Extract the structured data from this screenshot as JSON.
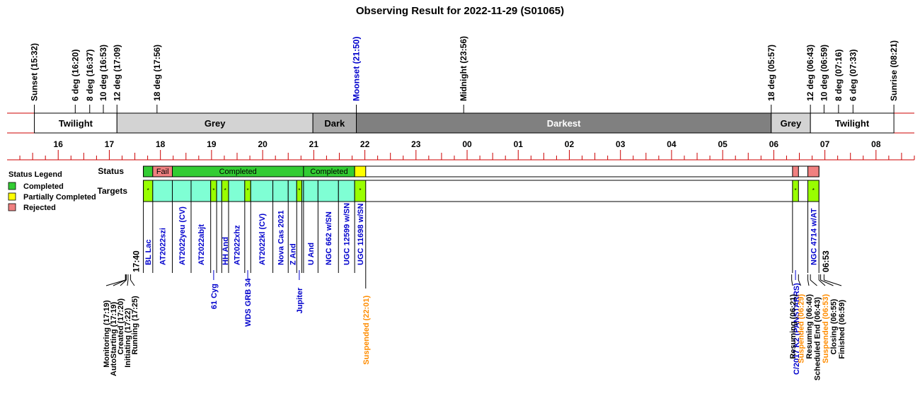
{
  "chart_data": {
    "type": "timeline",
    "title": "Observing Result for 2022-11-29 (S01065)",
    "time_axis": {
      "unit": "hour (UT+)",
      "start_hour": 15.0,
      "end_hour": 32.75,
      "tick_labels": [
        {
          "h": 16,
          "label": "16"
        },
        {
          "h": 17,
          "label": "17"
        },
        {
          "h": 18,
          "label": "18"
        },
        {
          "h": 19,
          "label": "19"
        },
        {
          "h": 20,
          "label": "20"
        },
        {
          "h": 21,
          "label": "21"
        },
        {
          "h": 22,
          "label": "22"
        },
        {
          "h": 23,
          "label": "23"
        },
        {
          "h": 24,
          "label": "00"
        },
        {
          "h": 25,
          "label": "01"
        },
        {
          "h": 26,
          "label": "02"
        },
        {
          "h": 27,
          "label": "03"
        },
        {
          "h": 28,
          "label": "04"
        },
        {
          "h": 29,
          "label": "05"
        },
        {
          "h": 30,
          "label": "06"
        },
        {
          "h": 31,
          "label": "07"
        },
        {
          "h": 32,
          "label": "08"
        }
      ]
    },
    "sun_events": [
      {
        "label": "Sunset (15:32)",
        "time": "15:32",
        "color": "#000000"
      },
      {
        "label": "6 deg (16:20)",
        "time": "16:20",
        "color": "#000000"
      },
      {
        "label": "8 deg (16:37)",
        "time": "16:37",
        "color": "#000000"
      },
      {
        "label": "10 deg (16:53)",
        "time": "16:53",
        "color": "#000000"
      },
      {
        "label": "12 deg (17:09)",
        "time": "17:09",
        "color": "#000000"
      },
      {
        "label": "18 deg (17:56)",
        "time": "17:56",
        "color": "#000000"
      },
      {
        "label": "Moonset (21:50)",
        "time": "21:50",
        "color": "#0000cc"
      },
      {
        "label": "Midnight (23:56)",
        "time": "23:56",
        "color": "#000000"
      },
      {
        "label": "18 deg (05:57)",
        "time": "05:57",
        "color": "#000000"
      },
      {
        "label": "12 deg (06:43)",
        "time": "06:43",
        "color": "#000000"
      },
      {
        "label": "10 deg (06:59)",
        "time": "06:59",
        "color": "#000000"
      },
      {
        "label": "8 deg (07:16)",
        "time": "07:16",
        "color": "#000000"
      },
      {
        "label": "6 deg (07:33)",
        "time": "07:33",
        "color": "#000000"
      },
      {
        "label": "Sunrise (08:21)",
        "time": "08:21",
        "color": "#000000"
      }
    ],
    "sky_bands": [
      {
        "label": "Twilight",
        "start": "15:32",
        "end": "17:09",
        "color": "#ffffff",
        "text_color": "#000000"
      },
      {
        "label": "Grey",
        "start": "17:09",
        "end": "20:59",
        "color": "#d3d3d3",
        "text_color": "#000000"
      },
      {
        "label": "Dark",
        "start": "20:59",
        "end": "21:50",
        "color": "#a9a9a9",
        "text_color": "#000000"
      },
      {
        "label": "Darkest",
        "start": "21:50",
        "end": "05:57",
        "color": "#808080",
        "text_color": "#ffffff"
      },
      {
        "label": "Grey",
        "start": "05:57",
        "end": "06:43",
        "color": "#d3d3d3",
        "text_color": "#000000"
      },
      {
        "label": "Twilight",
        "start": "06:43",
        "end": "08:21",
        "color": "#ffffff",
        "text_color": "#000000"
      }
    ],
    "row_labels": {
      "status": "Status",
      "targets": "Targets"
    },
    "legend": {
      "title": "Status Legend",
      "placement": "left",
      "items": [
        {
          "label": "Completed",
          "color": "#33cc33"
        },
        {
          "label": "Partially Completed",
          "color": "#ffff00"
        },
        {
          "label": "Rejected",
          "color": "#f08080"
        }
      ]
    },
    "status_segments": [
      {
        "start": "17:40",
        "end": "17:51",
        "label": "",
        "status": "Completed",
        "color": "#33cc33"
      },
      {
        "start": "17:51",
        "end": "18:14",
        "label": "Fail",
        "status": "Rejected",
        "color": "#f08080"
      },
      {
        "start": "18:14",
        "end": "20:48",
        "label": "Completed",
        "status": "Completed",
        "color": "#33cc33"
      },
      {
        "start": "20:48",
        "end": "21:48",
        "label": "Completed",
        "status": "Completed",
        "color": "#33cc33"
      },
      {
        "start": "21:48",
        "end": "22:01",
        "label": "",
        "status": "Partially Completed",
        "color": "#ffff00"
      },
      {
        "start": "06:22",
        "end": "06:29",
        "label": "",
        "status": "Rejected",
        "color": "#f08080"
      },
      {
        "start": "06:40",
        "end": "06:53",
        "label": "",
        "status": "Rejected",
        "color": "#f08080"
      }
    ],
    "targets": [
      {
        "name": "BL Lac",
        "start": "17:40",
        "end": "17:51",
        "kind": "green",
        "mark": "*"
      },
      {
        "name": "AT2022szi",
        "start": "17:51",
        "end": "18:14",
        "kind": "cyan",
        "mark": ""
      },
      {
        "name": "AT2022yeu (CV)",
        "start": "18:14",
        "end": "18:36",
        "kind": "cyan",
        "mark": ""
      },
      {
        "name": "AT2022abjt",
        "start": "18:36",
        "end": "18:59",
        "kind": "cyan",
        "mark": ""
      },
      {
        "name": "61 Cyg",
        "start": "18:59",
        "end": "19:06",
        "kind": "green",
        "mark": "*"
      },
      {
        "name": "",
        "start": "19:06",
        "end": "19:12",
        "kind": "cyan",
        "mark": ""
      },
      {
        "name": "HH And",
        "start": "19:12",
        "end": "19:20",
        "kind": "green",
        "mark": "*"
      },
      {
        "name": "AT2022xhz",
        "start": "19:20",
        "end": "19:39",
        "kind": "cyan",
        "mark": ""
      },
      {
        "name": "WDS GRB 34",
        "start": "19:39",
        "end": "19:46",
        "kind": "green",
        "mark": "*"
      },
      {
        "name": "AT2022kl (CV)",
        "start": "19:46",
        "end": "20:12",
        "kind": "cyan",
        "mark": ""
      },
      {
        "name": "Nova Cas 2021",
        "start": "20:12",
        "end": "20:30",
        "kind": "cyan",
        "mark": ""
      },
      {
        "name": "Z And",
        "start": "20:30",
        "end": "20:40",
        "kind": "cyan",
        "mark": ""
      },
      {
        "name": "Jupiter",
        "start": "20:40",
        "end": "20:46",
        "kind": "green",
        "mark": "*"
      },
      {
        "name": "",
        "start": "20:46",
        "end": "20:48",
        "kind": "cyan",
        "mark": ""
      },
      {
        "name": "U And",
        "start": "20:48",
        "end": "21:05",
        "kind": "cyan",
        "mark": ""
      },
      {
        "name": "NGC 662 w/SN",
        "start": "21:05",
        "end": "21:29",
        "kind": "cyan",
        "mark": ""
      },
      {
        "name": "UGC 12599 w/SN",
        "start": "21:29",
        "end": "21:48",
        "kind": "cyan",
        "mark": ""
      },
      {
        "name": "UGC 11698 w/SN",
        "start": "21:48",
        "end": "22:01",
        "kind": "green",
        "mark": "*"
      },
      {
        "name": "C/2017 K2 (PANSTARRS)",
        "start": "06:22",
        "end": "06:29",
        "kind": "green",
        "mark": "*"
      },
      {
        "name": "NGC 4714 w/AT",
        "start": "06:40",
        "end": "06:53",
        "kind": "green",
        "mark": "*"
      }
    ],
    "target_text_color": "#0000cc",
    "time_marks": [
      {
        "label": "17:40",
        "time": "17:40"
      },
      {
        "label": "06:53",
        "time": "06:53"
      }
    ],
    "events": [
      {
        "label": "Monitoring (17:19)",
        "time": "17:19",
        "color": "#000000"
      },
      {
        "label": "AutoStarting (17:19)",
        "time": "17:19",
        "color": "#000000"
      },
      {
        "label": "Created (17:20)",
        "time": "17:20",
        "color": "#000000"
      },
      {
        "label": "Initiating (17:22)",
        "time": "17:22",
        "color": "#000000"
      },
      {
        "label": "Running (17:25)",
        "time": "17:25",
        "color": "#000000"
      },
      {
        "label": "Suspended (22:01)",
        "time": "22:01",
        "color": "#ff8c00"
      },
      {
        "label": "Resuming (06:21)",
        "time": "06:21",
        "color": "#000000"
      },
      {
        "label": "Suspended (06:29)",
        "time": "06:29",
        "color": "#ff8c00"
      },
      {
        "label": "Resuming (06:40)",
        "time": "06:40",
        "color": "#000000"
      },
      {
        "label": "Scheduled End (06:43)",
        "time": "06:43",
        "color": "#000000"
      },
      {
        "label": "Suspended (06:53)",
        "time": "06:53",
        "color": "#ff8c00"
      },
      {
        "label": "Closing (06:55)",
        "time": "06:55",
        "color": "#000000"
      },
      {
        "label": "Finished (06:59)",
        "time": "06:59",
        "color": "#000000"
      }
    ],
    "colors": {
      "axis": "#cc0000",
      "completed": "#33cc33",
      "partial": "#ffff00",
      "rejected": "#f08080",
      "target_green": "#99ff00",
      "target_cyan": "#7fffd4"
    }
  }
}
